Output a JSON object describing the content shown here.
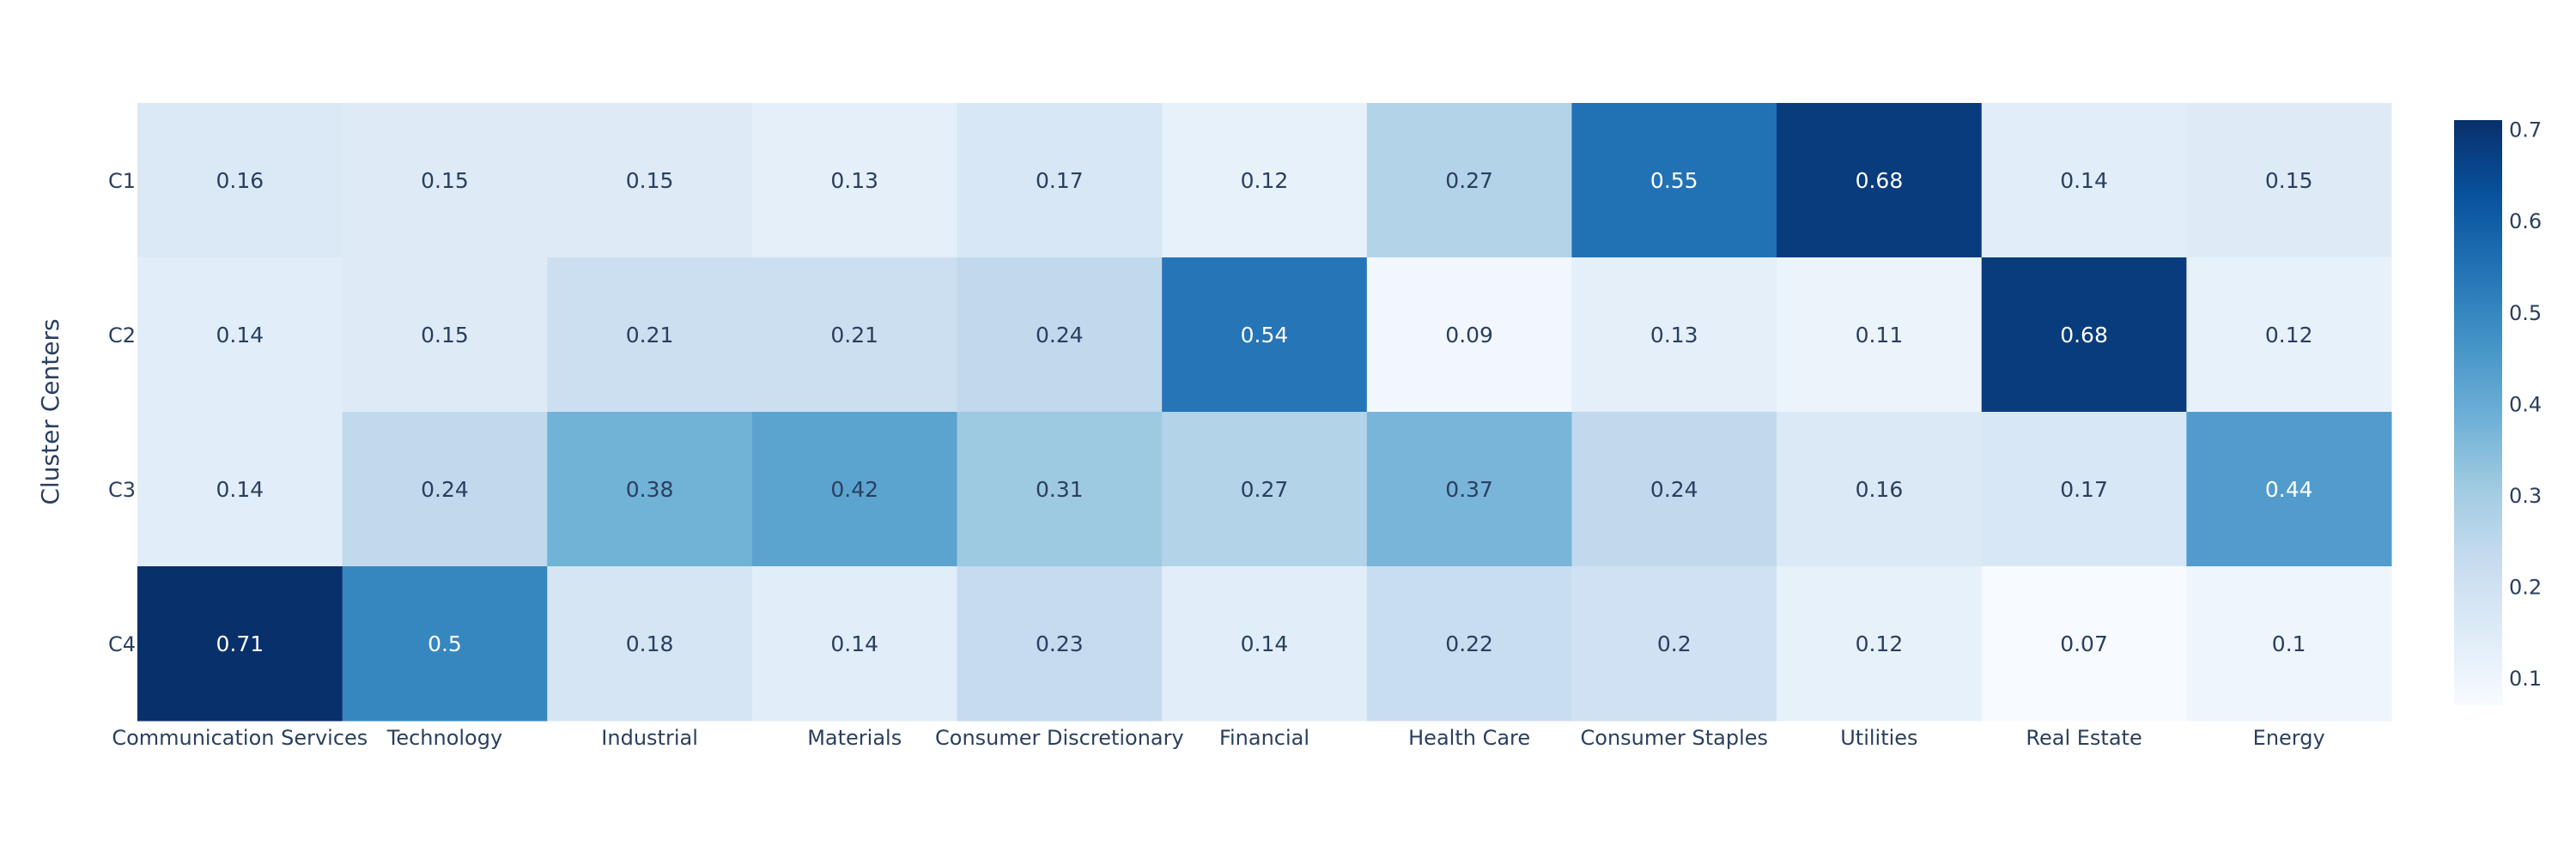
{
  "chart_data": {
    "type": "heatmap",
    "title": "",
    "xlabel": "",
    "ylabel": "Cluster Centers",
    "x": [
      "Communication Services",
      "Technology",
      "Industrial",
      "Materials",
      "Consumer Discretionary",
      "Financial",
      "Health Care",
      "Consumer Staples",
      "Utilities",
      "Real Estate",
      "Energy"
    ],
    "y": [
      "C1",
      "C2",
      "C3",
      "C4"
    ],
    "z": [
      [
        0.16,
        0.15,
        0.15,
        0.13,
        0.17,
        0.12,
        0.27,
        0.55,
        0.68,
        0.14,
        0.15
      ],
      [
        0.14,
        0.15,
        0.21,
        0.21,
        0.24,
        0.54,
        0.09,
        0.13,
        0.11,
        0.68,
        0.12
      ],
      [
        0.14,
        0.24,
        0.38,
        0.42,
        0.31,
        0.27,
        0.37,
        0.24,
        0.16,
        0.17,
        0.44
      ],
      [
        0.71,
        0.5,
        0.18,
        0.14,
        0.23,
        0.14,
        0.22,
        0.2,
        0.12,
        0.07,
        0.1
      ]
    ],
    "zmin": 0.07,
    "zmax": 0.71,
    "colorscale": [
      "#f7fbff",
      "#deebf7",
      "#c6dbef",
      "#9ecae1",
      "#6baed6",
      "#4292c6",
      "#2171b5",
      "#08519c",
      "#08306b"
    ],
    "colorbar": {
      "ticks": [
        0.1,
        0.2,
        0.3,
        0.4,
        0.5,
        0.6,
        0.7
      ]
    },
    "grid": false,
    "legend": "colorbar-right"
  }
}
